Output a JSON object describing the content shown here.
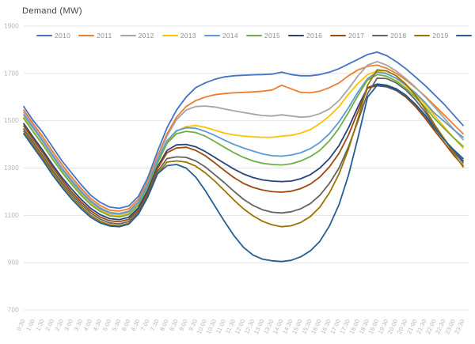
{
  "title": "Demand (MW)",
  "chart_data": {
    "type": "line",
    "title": "Demand (MW)",
    "xlabel": "",
    "ylabel": "Demand (MW)",
    "ylim": [
      700,
      1900
    ],
    "yticks": [
      1900,
      1700,
      1500,
      1300,
      1100,
      900,
      700
    ],
    "grid": "horizontal",
    "legend_position": "top",
    "x": [
      "0:30",
      "1:00",
      "1:30",
      "2:00",
      "2:30",
      "3:00",
      "3:30",
      "4:00",
      "4:30",
      "5:00",
      "5:30",
      "6:00",
      "6:30",
      "7:00",
      "7:30",
      "8:00",
      "8:30",
      "9:00",
      "9:30",
      "10:00",
      "10:30",
      "11:00",
      "11:30",
      "12:00",
      "12:30",
      "13:00",
      "13:30",
      "14:00",
      "14:30",
      "15:00",
      "15:30",
      "16:00",
      "16:30",
      "17:00",
      "17:30",
      "18:00",
      "18:30",
      "19:00",
      "19:30",
      "20:00",
      "20:30",
      "21:00",
      "21:30",
      "22:00",
      "22:30",
      "23:00",
      "23:30"
    ],
    "series": [
      {
        "name": "2010",
        "color": "#4472C4",
        "values": [
          1560,
          1500,
          1450,
          1390,
          1330,
          1280,
          1230,
          1185,
          1155,
          1135,
          1130,
          1140,
          1180,
          1260,
          1370,
          1470,
          1545,
          1600,
          1640,
          1660,
          1675,
          1685,
          1690,
          1692,
          1694,
          1695,
          1697,
          1705,
          1695,
          1690,
          1690,
          1695,
          1705,
          1720,
          1740,
          1760,
          1780,
          1790,
          1775,
          1750,
          1720,
          1685,
          1650,
          1610,
          1570,
          1525,
          1480
        ]
      },
      {
        "name": "2011",
        "color": "#ED7D31",
        "values": [
          1545,
          1487,
          1432,
          1372,
          1315,
          1263,
          1215,
          1172,
          1142,
          1122,
          1118,
          1128,
          1168,
          1245,
          1350,
          1445,
          1515,
          1560,
          1585,
          1600,
          1610,
          1615,
          1618,
          1620,
          1622,
          1625,
          1630,
          1650,
          1635,
          1620,
          1618,
          1625,
          1640,
          1660,
          1690,
          1715,
          1730,
          1735,
          1722,
          1700,
          1672,
          1640,
          1605,
          1565,
          1525,
          1485,
          1445
        ]
      },
      {
        "name": "2012",
        "color": "#A5A5A5",
        "values": [
          1535,
          1478,
          1420,
          1360,
          1303,
          1252,
          1205,
          1163,
          1133,
          1113,
          1108,
          1118,
          1158,
          1235,
          1340,
          1435,
          1505,
          1545,
          1560,
          1562,
          1558,
          1550,
          1542,
          1535,
          1528,
          1522,
          1520,
          1525,
          1520,
          1515,
          1518,
          1530,
          1550,
          1585,
          1635,
          1690,
          1735,
          1750,
          1735,
          1710,
          1678,
          1642,
          1602,
          1558,
          1512,
          1465,
          1420
        ]
      },
      {
        "name": "2013",
        "color": "#FFC000",
        "values": [
          1515,
          1455,
          1400,
          1340,
          1285,
          1235,
          1190,
          1150,
          1122,
          1103,
          1098,
          1108,
          1148,
          1222,
          1322,
          1408,
          1455,
          1475,
          1480,
          1472,
          1460,
          1448,
          1440,
          1435,
          1432,
          1430,
          1430,
          1435,
          1438,
          1448,
          1462,
          1488,
          1520,
          1560,
          1612,
          1658,
          1695,
          1710,
          1700,
          1678,
          1648,
          1612,
          1570,
          1522,
          1475,
          1428,
          1385
        ]
      },
      {
        "name": "2014",
        "color": "#5B9BD5",
        "values": [
          1525,
          1468,
          1412,
          1352,
          1295,
          1245,
          1198,
          1158,
          1128,
          1110,
          1105,
          1115,
          1155,
          1228,
          1330,
          1415,
          1458,
          1470,
          1468,
          1455,
          1438,
          1418,
          1400,
          1385,
          1372,
          1360,
          1352,
          1350,
          1355,
          1365,
          1382,
          1408,
          1445,
          1495,
          1555,
          1622,
          1678,
          1705,
          1698,
          1680,
          1652,
          1618,
          1578,
          1532,
          1498,
          1462,
          1430
        ]
      },
      {
        "name": "2015",
        "color": "#70AD47",
        "values": [
          1510,
          1452,
          1398,
          1338,
          1282,
          1232,
          1185,
          1145,
          1117,
          1098,
          1093,
          1103,
          1143,
          1217,
          1320,
          1405,
          1445,
          1455,
          1450,
          1435,
          1412,
          1388,
          1365,
          1345,
          1330,
          1320,
          1315,
          1313,
          1318,
          1330,
          1348,
          1375,
          1415,
          1468,
          1535,
          1608,
          1672,
          1695,
          1688,
          1668,
          1638,
          1600,
          1558,
          1510,
          1468,
          1428,
          1392
        ]
      },
      {
        "name": "2016",
        "color": "#264478",
        "values": [
          1488,
          1430,
          1375,
          1315,
          1260,
          1212,
          1168,
          1130,
          1103,
          1086,
          1082,
          1092,
          1132,
          1205,
          1305,
          1375,
          1398,
          1400,
          1390,
          1370,
          1345,
          1320,
          1296,
          1275,
          1260,
          1250,
          1245,
          1243,
          1245,
          1255,
          1272,
          1300,
          1340,
          1395,
          1470,
          1560,
          1640,
          1655,
          1650,
          1635,
          1608,
          1570,
          1525,
          1472,
          1422,
          1372,
          1330
        ]
      },
      {
        "name": "2017",
        "color": "#9E480E",
        "values": [
          1478,
          1420,
          1365,
          1305,
          1250,
          1200,
          1157,
          1120,
          1093,
          1077,
          1073,
          1083,
          1123,
          1196,
          1298,
          1365,
          1385,
          1388,
          1375,
          1352,
          1322,
          1290,
          1260,
          1235,
          1218,
          1207,
          1200,
          1198,
          1202,
          1213,
          1232,
          1262,
          1305,
          1362,
          1440,
          1540,
          1638,
          1648,
          1643,
          1628,
          1600,
          1560,
          1512,
          1458,
          1408,
          1355,
          1310
        ]
      },
      {
        "name": "2018",
        "color": "#636363",
        "values": [
          1465,
          1408,
          1352,
          1293,
          1238,
          1190,
          1147,
          1110,
          1084,
          1068,
          1064,
          1074,
          1114,
          1186,
          1285,
          1340,
          1347,
          1345,
          1330,
          1305,
          1272,
          1238,
          1202,
          1168,
          1142,
          1124,
          1113,
          1110,
          1115,
          1128,
          1150,
          1185,
          1235,
          1300,
          1390,
          1500,
          1615,
          1680,
          1678,
          1660,
          1630,
          1588,
          1538,
          1480,
          1425,
          1370,
          1322
        ]
      },
      {
        "name": "2019",
        "color": "#997300",
        "values": [
          1455,
          1398,
          1342,
          1283,
          1228,
          1180,
          1137,
          1100,
          1075,
          1060,
          1056,
          1066,
          1106,
          1178,
          1275,
          1325,
          1330,
          1325,
          1308,
          1280,
          1245,
          1205,
          1165,
          1128,
          1098,
          1075,
          1060,
          1052,
          1056,
          1070,
          1095,
          1135,
          1195,
          1275,
          1380,
          1510,
          1650,
          1715,
          1710,
          1690,
          1655,
          1608,
          1550,
          1485,
          1425,
          1362,
          1305
        ]
      },
      {
        "name": "2020",
        "color": "#255E91",
        "values": [
          1445,
          1388,
          1332,
          1272,
          1218,
          1170,
          1128,
          1092,
          1068,
          1055,
          1052,
          1063,
          1105,
          1180,
          1275,
          1310,
          1315,
          1300,
          1262,
          1205,
          1140,
          1075,
          1015,
          965,
          932,
          915,
          908,
          905,
          910,
          925,
          950,
          990,
          1055,
          1145,
          1270,
          1430,
          1600,
          1650,
          1645,
          1630,
          1605,
          1568,
          1522,
          1468,
          1420,
          1378,
          1340
        ]
      }
    ]
  },
  "colors": {
    "background": "#ffffff",
    "gridline": "#e4e4e6",
    "axis_label": "#b3b3ba",
    "title_text": "#404047",
    "legend_text": "#8f8f96"
  }
}
